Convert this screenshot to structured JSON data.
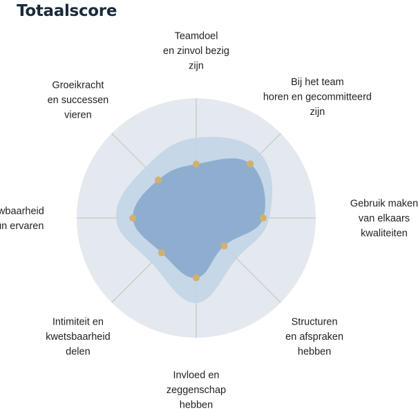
{
  "chart_data": {
    "type": "radar",
    "title": "Totaalscore",
    "axes": [
      [
        "Teamdoel",
        "en zinvol bezig",
        "zijn"
      ],
      [
        "Bij het team",
        "horen en gecommitteerd",
        "zijn"
      ],
      [
        "Gebruik maken",
        "van elkaars",
        "kwaliteiten"
      ],
      [
        "Structuren",
        "en afspraken",
        "hebben"
      ],
      [
        "Invloed en",
        "zeggenschap",
        "hebben"
      ],
      [
        "Intimiteit en",
        "kwetsbaarheid",
        "delen"
      ],
      [
        "Betrouwbaarheid",
        "en steun ervaren"
      ],
      [
        "Groeikracht",
        "en successen",
        "vieren"
      ]
    ],
    "range": [
      0,
      1
    ],
    "values": [
      0.45,
      0.64,
      0.56,
      0.33,
      0.5,
      0.41,
      0.53,
      0.45
    ],
    "outer_band": [
      0.67,
      0.76,
      0.61,
      0.48,
      0.71,
      0.53,
      0.67,
      0.6
    ],
    "colors": {
      "background_disc": "#e4e9ef",
      "outer_band": "#c2d5e6",
      "inner_area": "#88aacc",
      "points": "#d4b06a",
      "spokes": "#c9cdd2"
    }
  }
}
